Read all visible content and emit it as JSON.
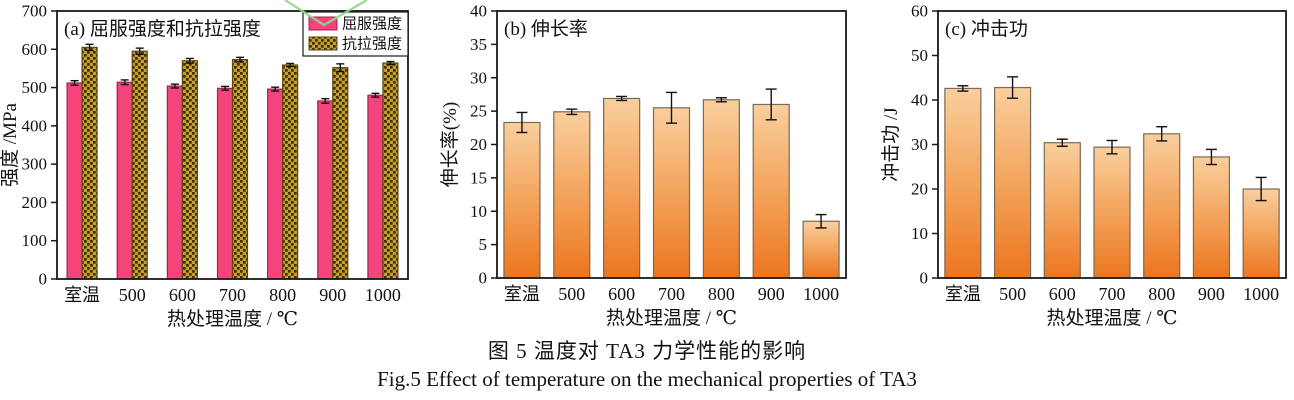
{
  "figure": {
    "caption_zh": "图 5  温度对 TA3 力学性能的影响",
    "caption_en": "Fig.5  Effect of temperature on the mechanical properties of TA3"
  },
  "chart_data": [
    {
      "id": "a",
      "type": "bar",
      "title": "(a) 屈服强度和抗拉强度",
      "xlabel": "热处理温度 / ℃",
      "ylabel": "强度 /MPa",
      "categories": [
        "室温",
        "500",
        "600",
        "700",
        "800",
        "900",
        "1000"
      ],
      "ylim": [
        0,
        700
      ],
      "ytick_step": 100,
      "grid": false,
      "legend_position": "top-right",
      "series": [
        {
          "name": "屈服强度",
          "style": "pink-solid",
          "values": [
            512,
            514,
            504,
            498,
            496,
            465,
            480
          ],
          "errors": [
            6,
            6,
            5,
            5,
            5,
            6,
            5
          ]
        },
        {
          "name": "抗拉强度",
          "style": "gold-checker",
          "values": [
            605,
            595,
            570,
            573,
            559,
            552,
            564
          ],
          "errors": [
            8,
            8,
            6,
            6,
            4,
            10,
            4
          ]
        }
      ]
    },
    {
      "id": "b",
      "type": "bar",
      "title": "(b) 伸长率",
      "xlabel": "热处理温度 / ℃",
      "ylabel": "伸长率(%)",
      "categories": [
        "室温",
        "500",
        "600",
        "700",
        "800",
        "900",
        "1000"
      ],
      "ylim": [
        0,
        40
      ],
      "ytick_step": 5,
      "grid": false,
      "legend_position": "none",
      "series": [
        {
          "name": "伸长率",
          "style": "orange-gradient",
          "values": [
            23.3,
            24.9,
            26.9,
            25.5,
            26.7,
            26.0,
            8.5
          ],
          "errors": [
            1.5,
            0.4,
            0.3,
            2.3,
            0.3,
            2.3,
            1.0
          ]
        }
      ]
    },
    {
      "id": "c",
      "type": "bar",
      "title": "(c) 冲击功",
      "xlabel": "热处理温度 / ℃",
      "ylabel": "冲击功 /J",
      "categories": [
        "室温",
        "500",
        "600",
        "700",
        "800",
        "900",
        "1000"
      ],
      "ylim": [
        0,
        60
      ],
      "ytick_step": 10,
      "grid": false,
      "legend_position": "none",
      "series": [
        {
          "name": "冲击功",
          "style": "orange-gradient",
          "values": [
            42.6,
            42.8,
            30.4,
            29.4,
            32.4,
            27.2,
            20.0
          ],
          "errors": [
            0.6,
            2.4,
            0.8,
            1.5,
            1.6,
            1.7,
            2.6
          ]
        }
      ]
    }
  ],
  "colors": {
    "yield_fill": "#F5437B",
    "yield_border": "#A0254F",
    "tensile_base": "#C59E2E",
    "tensile_dot": "#3E3008",
    "tensile_border": "#5E4712",
    "orange_top": "#F9CF9E",
    "orange_mid": "#F3A45C",
    "orange_bottom": "#EC751F",
    "orange_border": "#7A6A55",
    "axis": "#1A1A1A",
    "error_bar": "#111111",
    "watermark_green": "#8FD98F"
  }
}
